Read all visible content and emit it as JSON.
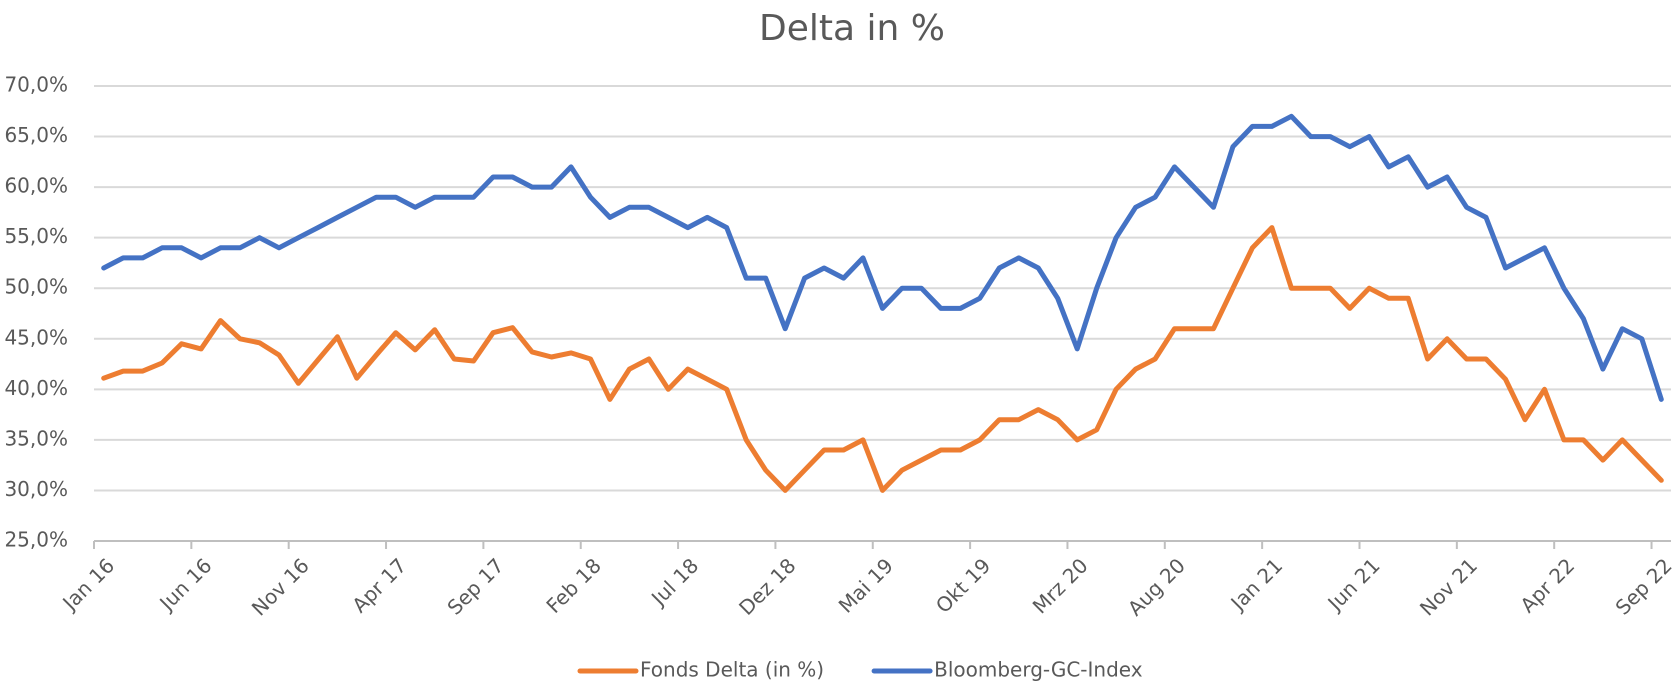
{
  "chart_data": {
    "type": "line",
    "title": "Delta in %",
    "categories": [
      "Jan 16",
      null,
      null,
      null,
      null,
      "Jun 16",
      null,
      null,
      null,
      null,
      "Nov 16",
      null,
      null,
      null,
      null,
      "Apr 17",
      null,
      null,
      null,
      null,
      "Sep 17",
      null,
      null,
      null,
      null,
      "Feb 18",
      null,
      null,
      null,
      null,
      "Jul 18",
      null,
      null,
      null,
      null,
      "Dez 18",
      null,
      null,
      null,
      null,
      "Mai 19",
      null,
      null,
      null,
      null,
      "Okt 19",
      null,
      null,
      null,
      null,
      "Mrz 20",
      null,
      null,
      null,
      null,
      "Aug 20",
      null,
      null,
      null,
      null,
      "Jan 21",
      null,
      null,
      null,
      null,
      "Jun 21",
      null,
      null,
      null,
      null,
      "Nov 21",
      null,
      null,
      null,
      null,
      "Apr 22",
      null,
      null,
      null,
      null,
      "Sep 22"
    ],
    "series": [
      {
        "name": "Fonds Delta (in %)",
        "color": "#ED7D31",
        "values": [
          41.1,
          41.8,
          41.8,
          42.6,
          44.5,
          44,
          46.8,
          45,
          44.6,
          43.4,
          40.6,
          42.9,
          45.2,
          41.1,
          43.4,
          45.6,
          43.9,
          45.9,
          43,
          42.8,
          45.6,
          46.1,
          43.7,
          43.2,
          43.6,
          43,
          39,
          42,
          43,
          40,
          42,
          41,
          40,
          35,
          32,
          30,
          32,
          34,
          34,
          35,
          30,
          32,
          33,
          34,
          34,
          35,
          37,
          37,
          38,
          37,
          35,
          36,
          40,
          42,
          43,
          46,
          46,
          46,
          50,
          54,
          56,
          50,
          50,
          50,
          48,
          50,
          49,
          49,
          43,
          45,
          43,
          43,
          41,
          37,
          40,
          35,
          35,
          33,
          35,
          33,
          31
        ]
      },
      {
        "name": "Bloomberg-GC-Index",
        "color": "#4472C4",
        "values": [
          52,
          53,
          53,
          54,
          54,
          53,
          54,
          54,
          55,
          54,
          55,
          56,
          57,
          58,
          59,
          59,
          58,
          59,
          59,
          59,
          61,
          61,
          60,
          60,
          62,
          59,
          57,
          58,
          58,
          57,
          56,
          57,
          56,
          51,
          51,
          46,
          51,
          52,
          51,
          53,
          48,
          50,
          50,
          48,
          48,
          49,
          52,
          53,
          52,
          49,
          44,
          50,
          55,
          58,
          59,
          62,
          60,
          58,
          64,
          66,
          66,
          67,
          65,
          65,
          64,
          65,
          62,
          63,
          60,
          61,
          58,
          57,
          52,
          53,
          54,
          50,
          47,
          42,
          46,
          45,
          39
        ]
      }
    ],
    "ylim": [
      25,
      70
    ],
    "yticks": [
      {
        "value": 25,
        "label": "25,0%"
      },
      {
        "value": 30,
        "label": "30,0%"
      },
      {
        "value": 35,
        "label": "35,0%"
      },
      {
        "value": 40,
        "label": "40,0%"
      },
      {
        "value": 45,
        "label": "45,0%"
      },
      {
        "value": 50,
        "label": "50,0%"
      },
      {
        "value": 55,
        "label": "55,0%"
      },
      {
        "value": 60,
        "label": "60,0%"
      },
      {
        "value": 65,
        "label": "65,0%"
      },
      {
        "value": 70,
        "label": "70,0%"
      }
    ],
    "grid": true,
    "legend": "bottom"
  }
}
